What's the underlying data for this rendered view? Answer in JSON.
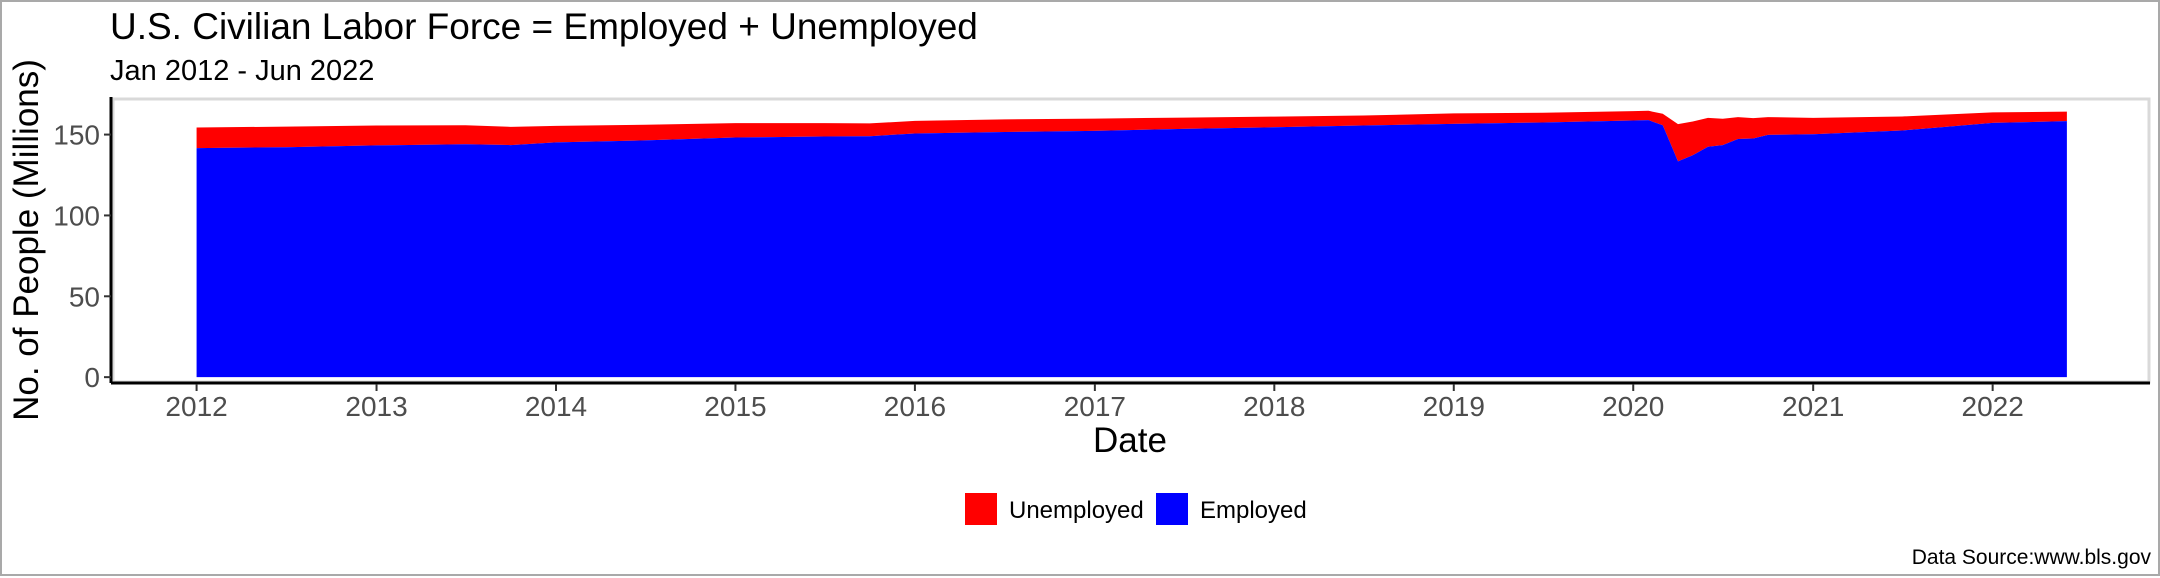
{
  "chart_data": {
    "type": "area",
    "stacked": true,
    "title": "U.S. Civilian Labor Force = Employed + Unemployed",
    "subtitle": "Jan 2012 - Jun 2022",
    "xlabel": "Date",
    "ylabel": "No. of People (Millions)",
    "source": "Data Source:www.bls.gov",
    "xlim": [
      "2011-07-15",
      "2022-11-15"
    ],
    "ylim": [
      -3,
      172
    ],
    "x_ticks": [
      "2012",
      "2013",
      "2014",
      "2015",
      "2016",
      "2017",
      "2018",
      "2019",
      "2020",
      "2021",
      "2022"
    ],
    "y_ticks": [
      "0",
      "50",
      "100",
      "150"
    ],
    "grid": false,
    "legend_position": "bottom",
    "x": [
      "2012-01",
      "2012-07",
      "2013-01",
      "2013-07",
      "2013-10",
      "2014-01",
      "2014-07",
      "2015-01",
      "2015-07",
      "2015-10",
      "2016-01",
      "2016-07",
      "2017-01",
      "2017-07",
      "2018-01",
      "2018-07",
      "2019-01",
      "2019-07",
      "2020-01",
      "2020-02",
      "2020-03",
      "2020-04",
      "2020-05",
      "2020-06",
      "2020-07",
      "2020-08",
      "2020-09",
      "2020-10",
      "2021-01",
      "2021-07",
      "2022-01",
      "2022-06"
    ],
    "series": [
      {
        "name": "Unemployed",
        "color": "#ff0000",
        "values": [
          12.8,
          12.7,
          12.3,
          11.8,
          11.3,
          10.2,
          9.7,
          8.9,
          8.3,
          7.9,
          7.8,
          7.8,
          7.6,
          7.0,
          6.6,
          6.2,
          6.5,
          6.0,
          5.8,
          5.8,
          7.1,
          23.1,
          20.9,
          17.8,
          16.3,
          13.5,
          12.6,
          11.0,
          10.1,
          8.7,
          6.5,
          5.9
        ]
      },
      {
        "name": "Employed",
        "color": "#0000ff",
        "values": [
          141.6,
          142.2,
          143.3,
          144.0,
          143.5,
          145.2,
          146.4,
          148.2,
          148.8,
          149.0,
          150.7,
          151.6,
          152.3,
          153.5,
          154.5,
          155.6,
          156.6,
          157.5,
          158.7,
          158.9,
          155.8,
          133.4,
          137.2,
          142.5,
          143.5,
          147.3,
          147.6,
          149.8,
          150.2,
          152.5,
          157.2,
          158.3
        ]
      }
    ]
  },
  "legend": {
    "items": [
      {
        "label": "Unemployed",
        "color": "#ff0000"
      },
      {
        "label": "Employed",
        "color": "#0000ff"
      }
    ]
  }
}
